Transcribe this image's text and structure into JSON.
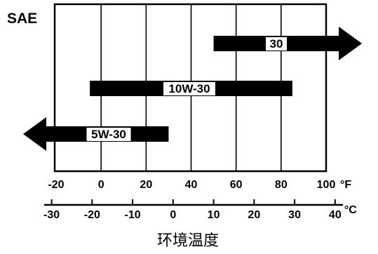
{
  "sae_label": "SAE",
  "axis_title": "环境温度",
  "chart_data": {
    "type": "range-bar",
    "x_f_range": [
      -20,
      100
    ],
    "x_f_ticks": [
      "-20",
      "0",
      "20",
      "40",
      "60",
      "80",
      "100"
    ],
    "x_f_unit": "°F",
    "x_c_ticks": [
      "-30",
      "-20",
      "-10",
      "0",
      "10",
      "20",
      "30",
      "40"
    ],
    "x_c_unit": "°C",
    "grades": [
      {
        "label": "30",
        "min_f": 50,
        "max_f": 100,
        "open_start": false,
        "open_end": true
      },
      {
        "label": "10W-30",
        "min_f": -5,
        "max_f": 85,
        "open_start": false,
        "open_end": false
      },
      {
        "label": "5W-30",
        "min_f": -20,
        "max_f": 30,
        "open_start": true,
        "open_end": false
      }
    ],
    "grid": true
  }
}
